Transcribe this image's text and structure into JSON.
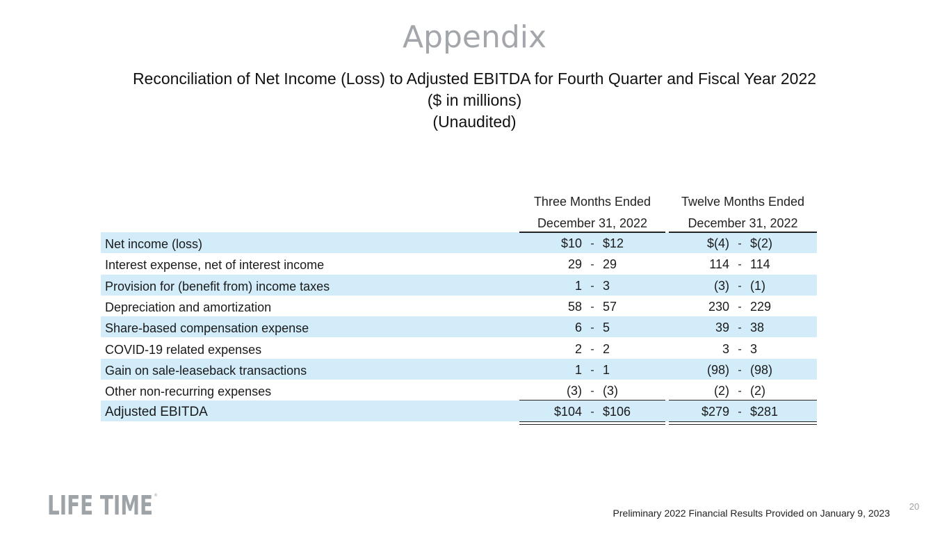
{
  "slide": {
    "title": "Appendix",
    "subtitle_line1": "Reconciliation of Net Income (Loss) to Adjusted EBITDA for Fourth Quarter and Fiscal Year 2022",
    "subtitle_line2": "($ in millions)",
    "subtitle_line3": "(Unaudited)",
    "page_number": "20",
    "footer_note": "Preliminary 2022 Financial Results Provided on January 9, 2023",
    "logo_text": "LIFE TIME",
    "logo_color": "#9ea3a8"
  },
  "table": {
    "columns": [
      {
        "line1": "Three Months Ended",
        "line2": "December 31, 2022"
      },
      {
        "line1": "Twelve Months Ended",
        "line2": "December 31, 2022"
      }
    ],
    "shade_color": "#d2ecfa",
    "rows": [
      {
        "label": "Net income (loss)",
        "q_low": "$10",
        "q_high": "$12",
        "y_low": "$(4)",
        "y_high": "$(2)",
        "shaded": true
      },
      {
        "label": "Interest expense, net of interest income",
        "q_low": "29",
        "q_high": "29",
        "y_low": "114",
        "y_high": "114",
        "shaded": false
      },
      {
        "label": "Provision for (benefit from) income taxes",
        "q_low": "1",
        "q_high": "3",
        "y_low": "(3)",
        "y_high": "(1)",
        "shaded": true
      },
      {
        "label": "Depreciation and amortization",
        "q_low": "58",
        "q_high": "57",
        "y_low": "230",
        "y_high": "229",
        "shaded": false
      },
      {
        "label": "Share-based compensation expense",
        "q_low": "6",
        "q_high": "5",
        "y_low": "39",
        "y_high": "38",
        "shaded": true
      },
      {
        "label": "COVID-19 related expenses",
        "q_low": "2",
        "q_high": "2",
        "y_low": "3",
        "y_high": "3",
        "shaded": false
      },
      {
        "label": "Gain on sale-leaseback transactions",
        "q_low": "1",
        "q_high": "1",
        "y_low": "(98)",
        "y_high": "(98)",
        "shaded": true
      },
      {
        "label": "Other non-recurring expenses",
        "q_low": "(3)",
        "q_high": "(3)",
        "y_low": "(2)",
        "y_high": "(2)",
        "shaded": false
      },
      {
        "label": "Adjusted EBITDA",
        "q_low": "$104",
        "q_high": "$106",
        "y_low": "$279",
        "y_high": "$281",
        "shaded": true
      }
    ],
    "range_separator": "-"
  }
}
